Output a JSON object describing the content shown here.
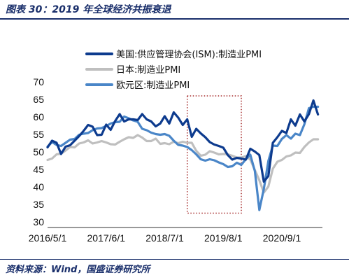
{
  "header": {
    "title": "图表 30：2019 年全球经济共振衰退"
  },
  "footer": {
    "source": "资料来源：Wind，国盛证券研究所"
  },
  "colors": {
    "us": "#0d3b8e",
    "japan": "#bfbfbf",
    "euro": "#4a86c8",
    "highlight_box": "#a52a2a",
    "title": "#1a2f6b"
  },
  "chart_data": {
    "type": "line",
    "title": "",
    "xlabel": "",
    "ylabel": "",
    "ylim": [
      30,
      70
    ],
    "yticks": [
      30,
      35,
      40,
      45,
      50,
      55,
      60,
      65,
      70
    ],
    "xticks": [
      "2016/5/1",
      "2017/6/1",
      "2018/7/1",
      "2019/8/1",
      "2020/9/1"
    ],
    "x_start": "2016-05",
    "x_end": "2021-06",
    "legend_position": "top",
    "grid": false,
    "highlight": {
      "x_from": "2018-12",
      "x_to": "2019-12",
      "y_from": 32.5,
      "y_to": 66,
      "style": "dotted"
    },
    "series": [
      {
        "name": "美国:供应管理协会(ISM):制造业PMI",
        "values": [
          51.3,
          53.2,
          52.6,
          49.4,
          51.5,
          51.9,
          53.2,
          54.5,
          56.0,
          57.7,
          57.2,
          54.8,
          54.9,
          57.8,
          56.3,
          58.8,
          60.8,
          58.7,
          59.3,
          59.3,
          59.1,
          60.8,
          59.3,
          58.7,
          57.3,
          58.1,
          60.2,
          58.1,
          61.3,
          59.8,
          57.7,
          59.3,
          54.3,
          56.6,
          55.3,
          54.2,
          52.8,
          52.1,
          51.7,
          51.2,
          49.1,
          47.8,
          48.3,
          48.1,
          47.8,
          50.9,
          50.1,
          49.1,
          41.5,
          43.1,
          52.6,
          54.2,
          56.0,
          55.4,
          59.3,
          57.5,
          60.7,
          58.7,
          60.8,
          64.7,
          60.7
        ],
        "color": "#0d3b8e"
      },
      {
        "name": "日本:制造业PMI",
        "values": [
          47.7,
          48.1,
          49.3,
          49.5,
          50.4,
          51.4,
          51.3,
          52.4,
          52.7,
          53.3,
          52.4,
          52.7,
          53.1,
          52.7,
          52.2,
          52.1,
          52.9,
          53.6,
          54.2,
          54.0,
          54.8,
          54.1,
          53.1,
          53.1,
          53.8,
          52.3,
          52.5,
          52.2,
          52.9,
          52.5,
          52.9,
          52.6,
          52.6,
          50.3,
          48.9,
          49.2,
          50.2,
          49.8,
          49.3,
          49.4,
          49.3,
          48.9,
          48.4,
          48.4,
          48.8,
          47.8,
          44.8,
          41.9,
          38.4,
          40.1,
          45.2,
          47.2,
          47.7,
          48.7,
          49.0,
          49.8,
          49.7,
          51.4,
          52.7,
          53.6,
          53.6
        ],
        "color": "#bfbfbf"
      },
      {
        "name": "欧元区:制造业PMI",
        "values": [
          51.5,
          52.8,
          52.0,
          51.7,
          52.6,
          53.5,
          53.7,
          54.9,
          55.2,
          55.4,
          56.2,
          56.7,
          56.8,
          57.4,
          58.1,
          58.5,
          58.6,
          60.1,
          59.6,
          59.0,
          58.6,
          56.6,
          56.2,
          55.5,
          55.1,
          54.9,
          55.1,
          54.6,
          53.2,
          52.0,
          51.8,
          51.4,
          50.5,
          49.3,
          47.9,
          47.5,
          47.9,
          47.6,
          47.0,
          46.5,
          45.7,
          45.9,
          46.9,
          46.3,
          47.9,
          49.2,
          44.5,
          33.4,
          39.4,
          47.4,
          51.8,
          51.7,
          53.7,
          54.8,
          53.8,
          55.2,
          54.8,
          57.9,
          62.5,
          62.9,
          62.9
        ],
        "color": "#4a86c8"
      }
    ]
  }
}
